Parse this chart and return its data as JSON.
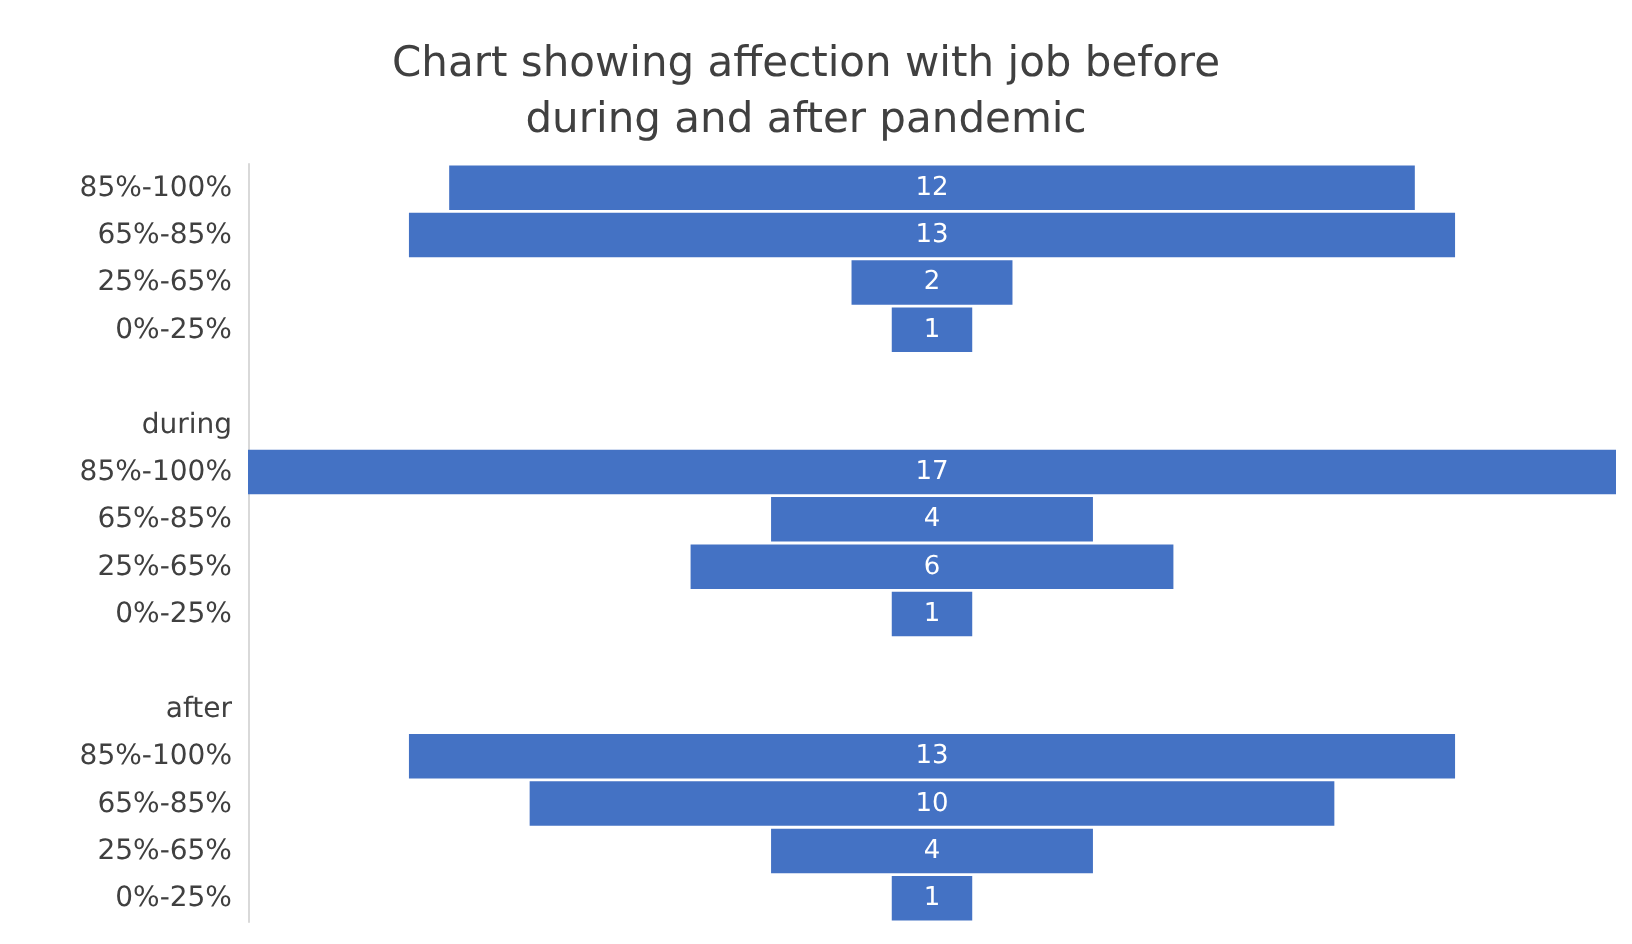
{
  "chart_data": {
    "type": "other",
    "title": "Chart showing affection with job before\nduring and after pandemic",
    "categories": [
      "85%-100%",
      "65%-85%",
      "25%-65%",
      "0%-25%",
      null,
      "during",
      "85%-100%",
      "65%-85%",
      "25%-65%",
      "0%-25%",
      null,
      "after",
      "85%-100%",
      "65%-85%",
      "25%-65%",
      "0%-25%"
    ],
    "values": [
      12,
      13,
      2,
      1,
      null,
      null,
      17,
      4,
      6,
      1,
      null,
      null,
      13,
      10,
      4,
      1
    ],
    "color": "#4472c4",
    "data_labels": true
  }
}
